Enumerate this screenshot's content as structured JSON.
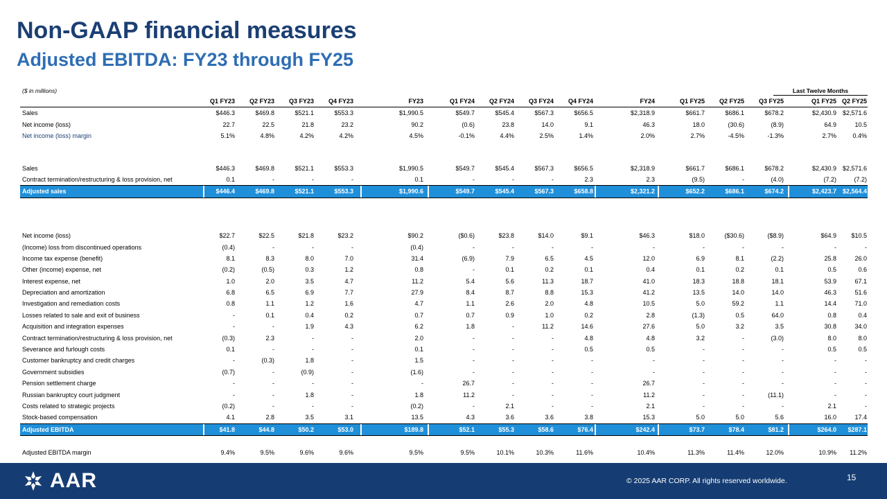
{
  "header": {
    "title": "Non-GAAP financial measures",
    "subtitle": "Adjusted EBITDA:  FY23 through FY25"
  },
  "table": {
    "units_note": "($ in millions)",
    "ltm_label": "Last Twelve Months",
    "columns": [
      "Q1 FY23",
      "Q2 FY23",
      "Q3 FY23",
      "Q4 FY23",
      "FY23",
      "Q1 FY24",
      "Q2 FY24",
      "Q3 FY24",
      "Q4 FY24",
      "FY24",
      "Q1 FY25",
      "Q2 FY25",
      "Q3 FY25",
      "Q1 FY25",
      "Q2 FY25"
    ],
    "section1": [
      {
        "label": "Sales",
        "values": [
          "$446.3",
          "$469.8",
          "$521.1",
          "$553.3",
          "$1,990.5",
          "$549.7",
          "$545.4",
          "$567.3",
          "$656.5",
          "$2,318.9",
          "$661.7",
          "$686.1",
          "$678.2",
          "$2,430.9",
          "$2,571.6"
        ]
      },
      {
        "label": "Net income (loss)",
        "values": [
          "22.7",
          "22.5",
          "21.8",
          "23.2",
          "90.2",
          "(0.6)",
          "23.8",
          "14.0",
          "9.1",
          "46.3",
          "18.0",
          "(30.6)",
          "(8.9)",
          "64.9",
          "10.5"
        ]
      },
      {
        "label": "Net income (loss) margin",
        "values": [
          "5.1%",
          "4.8%",
          "4.2%",
          "4.2%",
          "4.5%",
          "-0.1%",
          "4.4%",
          "2.5%",
          "1.4%",
          "2.0%",
          "2.7%",
          "-4.5%",
          "-1.3%",
          "2.7%",
          "0.4%"
        ]
      }
    ],
    "section2": [
      {
        "label": "Sales",
        "values": [
          "$446.3",
          "$469.8",
          "$521.1",
          "$553.3",
          "$1,990.5",
          "$549.7",
          "$545.4",
          "$567.3",
          "$656.5",
          "$2,318.9",
          "$661.7",
          "$686.1",
          "$678.2",
          "$2,430.9",
          "$2,571.6"
        ]
      },
      {
        "label": "Contract termination/restructuring & loss provision, net",
        "values": [
          "0.1",
          "-",
          "-",
          "-",
          "0.1",
          "-",
          "-",
          "-",
          "2.3",
          "2.3",
          "(9.5)",
          "-",
          "(4.0)",
          "(7.2)",
          "(7.2)"
        ]
      }
    ],
    "adjusted_sales": {
      "label": "Adjusted sales",
      "values": [
        "$446.4",
        "$469.8",
        "$521.1",
        "$553.3",
        "$1,990.6",
        "$549.7",
        "$545.4",
        "$567.3",
        "$658.8",
        "$2,321.2",
        "$652.2",
        "$686.1",
        "$674.2",
        "$2,423.7",
        "$2,564.4"
      ]
    },
    "section3": [
      {
        "label": "Net income (loss)",
        "values": [
          "$22.7",
          "$22.5",
          "$21.8",
          "$23.2",
          "$90.2",
          "($0.6)",
          "$23.8",
          "$14.0",
          "$9.1",
          "$46.3",
          "$18.0",
          "($30.6)",
          "($8.9)",
          "$64.9",
          "$10.5"
        ]
      },
      {
        "label": "(Income) loss from discontinued operations",
        "values": [
          "(0.4)",
          "-",
          "-",
          "-",
          "(0.4)",
          "-",
          "-",
          "-",
          "-",
          "-",
          "-",
          "-",
          "-",
          "-",
          "-"
        ]
      },
      {
        "label": "Income tax expense (benefit)",
        "values": [
          "8.1",
          "8.3",
          "8.0",
          "7.0",
          "31.4",
          "(6.9)",
          "7.9",
          "6.5",
          "4.5",
          "12.0",
          "6.9",
          "8.1",
          "(2.2)",
          "25.8",
          "26.0"
        ]
      },
      {
        "label": "Other (income) expense, net",
        "values": [
          "(0.2)",
          "(0.5)",
          "0.3",
          "1.2",
          "0.8",
          "-",
          "0.1",
          "0.2",
          "0.1",
          "0.4",
          "0.1",
          "0.2",
          "0.1",
          "0.5",
          "0.6"
        ]
      },
      {
        "label": "Interest expense, net",
        "values": [
          "1.0",
          "2.0",
          "3.5",
          "4.7",
          "11.2",
          "5.4",
          "5.6",
          "11.3",
          "18.7",
          "41.0",
          "18.3",
          "18.8",
          "18.1",
          "53.9",
          "67.1"
        ]
      },
      {
        "label": "Depreciation and amortization",
        "values": [
          "6.8",
          "6.5",
          "6.9",
          "7.7",
          "27.9",
          "8.4",
          "8.7",
          "8.8",
          "15.3",
          "41.2",
          "13.5",
          "14.0",
          "14.0",
          "46.3",
          "51.6"
        ]
      },
      {
        "label": "Investigation and remediation costs",
        "values": [
          "0.8",
          "1.1",
          "1.2",
          "1.6",
          "4.7",
          "1.1",
          "2.6",
          "2.0",
          "4.8",
          "10.5",
          "5.0",
          "59.2",
          "1.1",
          "14.4",
          "71.0"
        ]
      },
      {
        "label": "Losses related to sale and exit of business",
        "values": [
          "-",
          "0.1",
          "0.4",
          "0.2",
          "0.7",
          "0.7",
          "0.9",
          "1.0",
          "0.2",
          "2.8",
          "(1.3)",
          "0.5",
          "64.0",
          "0.8",
          "0.4"
        ]
      },
      {
        "label": "Acquisition and integration expenses",
        "values": [
          "-",
          "-",
          "1.9",
          "4.3",
          "6.2",
          "1.8",
          "-",
          "11.2",
          "14.6",
          "27.6",
          "5.0",
          "3.2",
          "3.5",
          "30.8",
          "34.0"
        ]
      },
      {
        "label": "Contract termination/restructuring & loss provision, net",
        "values": [
          "(0.3)",
          "2.3",
          "-",
          "-",
          "2.0",
          "-",
          "-",
          "-",
          "4.8",
          "4.8",
          "3.2",
          "-",
          "(3.0)",
          "8.0",
          "8.0"
        ]
      },
      {
        "label": "Severance and furlough costs",
        "values": [
          "0.1",
          "-",
          "-",
          "-",
          "0.1",
          "-",
          "-",
          "-",
          "0.5",
          "0.5",
          "-",
          "-",
          "-",
          "0.5",
          "0.5"
        ]
      },
      {
        "label": "Customer bankruptcy and credit charges",
        "values": [
          "-",
          "(0.3)",
          "1.8",
          "-",
          "1.5",
          "-",
          "-",
          "-",
          "-",
          "-",
          "-",
          "-",
          "-",
          "-",
          "-"
        ]
      },
      {
        "label": "Government subsidies",
        "values": [
          "(0.7)",
          "-",
          "(0.9)",
          "-",
          "(1.6)",
          "-",
          "-",
          "-",
          "-",
          "-",
          "-",
          "-",
          "-",
          "-",
          "-"
        ]
      },
      {
        "label": "Pension settlement charge",
        "values": [
          "-",
          "-",
          "-",
          "-",
          "-",
          "26.7",
          "-",
          "-",
          "-",
          "26.7",
          "-",
          "-",
          "-",
          "-",
          "-"
        ]
      },
      {
        "label": "Russian bankruptcy court judgment",
        "values": [
          "-",
          "-",
          "1.8",
          "-",
          "1.8",
          "11.2",
          "-",
          "-",
          "-",
          "11.2",
          "-",
          "-",
          "(11.1)",
          "-",
          "-"
        ]
      },
      {
        "label": "Costs related to strategic projects",
        "values": [
          "(0.2)",
          "-",
          "-",
          "-",
          "(0.2)",
          "-",
          "2.1",
          "-",
          "-",
          "2.1",
          "-",
          "-",
          "-",
          "2.1",
          "-"
        ]
      },
      {
        "label": "Stock-based compensation",
        "values": [
          "4.1",
          "2.8",
          "3.5",
          "3.1",
          "13.5",
          "4.3",
          "3.6",
          "3.6",
          "3.8",
          "15.3",
          "5.0",
          "5.0",
          "5.6",
          "16.0",
          "17.4"
        ]
      }
    ],
    "adjusted_ebitda": {
      "label": "Adjusted EBITDA",
      "values": [
        "$41.8",
        "$44.8",
        "$50.2",
        "$53.0",
        "$189.8",
        "$52.1",
        "$55.3",
        "$58.6",
        "$76.4",
        "$242.4",
        "$73.7",
        "$78.4",
        "$81.2",
        "$264.0",
        "$287.1"
      ]
    },
    "adjusted_ebitda_margin": {
      "label": "Adjusted EBITDA margin",
      "values": [
        "9.4%",
        "9.5%",
        "9.6%",
        "9.6%",
        "9.5%",
        "9.5%",
        "10.1%",
        "10.3%",
        "11.6%",
        "10.4%",
        "11.3%",
        "11.4%",
        "12.0%",
        "10.9%",
        "11.2%"
      ]
    }
  },
  "footer": {
    "logo_text": "AAR",
    "copyright": "© 2025 AAR CORP. All rights reserved worldwide.",
    "page_number": "15"
  },
  "colors": {
    "title": "#1b3f73",
    "subtitle": "#2e6db4",
    "highlight_row": "#1f8fd9",
    "footer_bg": "#163d73"
  }
}
